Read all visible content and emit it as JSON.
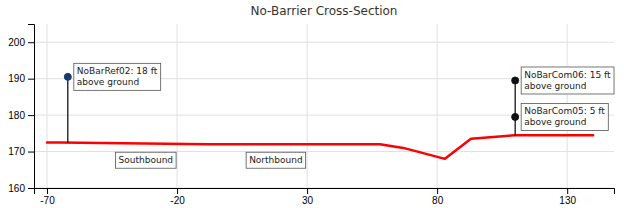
{
  "chart_data": {
    "type": "line",
    "title": "No-Barrier Cross-Section",
    "xlim": [
      -75,
      148
    ],
    "ylim": [
      160,
      205
    ],
    "xticks": [
      -70,
      -20,
      30,
      80,
      130
    ],
    "yticks": [
      160,
      170,
      180,
      190,
      200
    ],
    "grid": true,
    "series": [
      {
        "type": "line",
        "color": "red",
        "x": [
          -70,
          -65,
          -8,
          5,
          58,
          67,
          83,
          93,
          110,
          130,
          140
        ],
        "values": [
          172.5,
          172.5,
          172.0,
          172.0,
          172.0,
          171.0,
          168.0,
          173.5,
          174.5,
          174.5,
          174.5
        ]
      },
      {
        "type": "line",
        "color": "black",
        "x": [
          -62,
          -62
        ],
        "values": [
          172.5,
          190.5
        ]
      },
      {
        "type": "line",
        "color": "black",
        "x": [
          110,
          110
        ],
        "values": [
          174.5,
          189.5
        ]
      },
      {
        "type": "scatter",
        "marker": "circle",
        "color": "#1a3a6a",
        "x": [
          -62
        ],
        "values": [
          190.5
        ]
      },
      {
        "type": "scatter",
        "marker": "circle",
        "color": "#111111",
        "x": [
          110,
          110
        ],
        "values": [
          189.5,
          179.5
        ]
      }
    ],
    "annotations": [
      {
        "text": "NoBarRef02: 18 ft\nabove ground",
        "x": -62,
        "y": 190.5
      },
      {
        "text": "NoBarCom06: 15 ft\nabove ground",
        "x": 110,
        "y": 189.5
      },
      {
        "text": "NoBarCom05: 5 ft\nabove ground",
        "x": 110,
        "y": 179.5
      },
      {
        "text": "Southbound",
        "x": -32,
        "y": 170.5
      },
      {
        "text": "Northbound",
        "x": 18,
        "y": 170.5
      }
    ]
  }
}
